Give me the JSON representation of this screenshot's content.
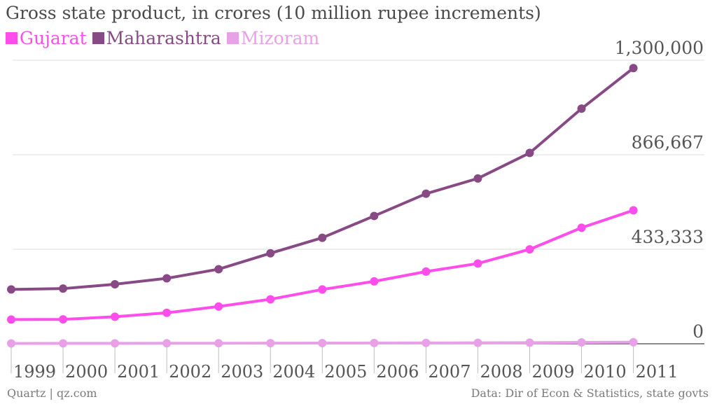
{
  "chart_data": {
    "type": "line",
    "title": "Gross state product, in crores (10 million rupee increments)",
    "x": [
      "1999",
      "2000",
      "2001",
      "2002",
      "2003",
      "2004",
      "2005",
      "2006",
      "2007",
      "2008",
      "2009",
      "2010",
      "2011"
    ],
    "ylim": [
      0,
      1300000
    ],
    "yticks": [
      0,
      433333,
      866667,
      1300000
    ],
    "ytick_labels": [
      "0",
      "433,333",
      "866,667",
      "1,300,000"
    ],
    "grid": true,
    "legend": "top-left",
    "series": [
      {
        "name": "Gujarat",
        "color": "#ff4dec",
        "values": [
          111000,
          112000,
          124000,
          142000,
          171000,
          204000,
          249000,
          286000,
          331000,
          368000,
          433000,
          532000,
          612000
        ]
      },
      {
        "name": "Maharashtra",
        "color": "#874a84",
        "values": [
          249000,
          253000,
          273000,
          300000,
          342000,
          415000,
          486000,
          586000,
          688000,
          758000,
          875000,
          1078000,
          1264000
        ]
      },
      {
        "name": "Mizoram",
        "color": "#e8a1e7",
        "values": [
          1700,
          1900,
          2100,
          2300,
          2600,
          2800,
          3100,
          3500,
          3900,
          4300,
          5300,
          6400,
          7300
        ]
      }
    ]
  },
  "footer": {
    "source_left": "Quartz | qz.com",
    "source_right": "Data: Dir of Econ & Statistics, state govts"
  }
}
